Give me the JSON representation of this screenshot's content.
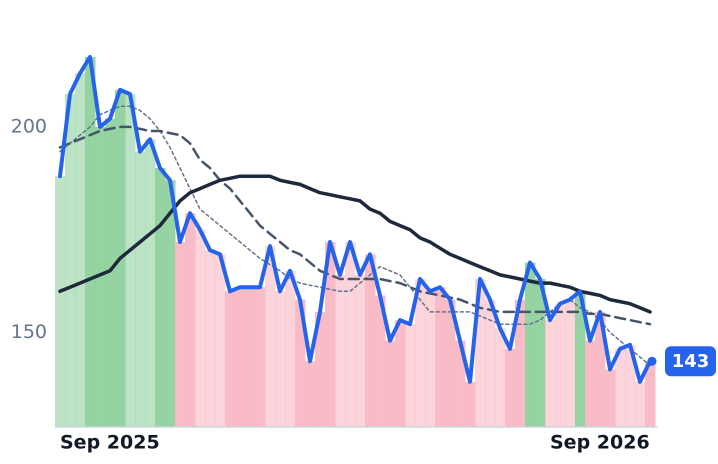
{
  "chart_data": {
    "type": "line",
    "categories": [
      "Sep 2025",
      null,
      null,
      null,
      null,
      null,
      null,
      null,
      null,
      null,
      null,
      null,
      null,
      null,
      null,
      null,
      null,
      null,
      null,
      null,
      null,
      null,
      null,
      null,
      null,
      null,
      null,
      null,
      null,
      null,
      null,
      null,
      null,
      null,
      null,
      null,
      null,
      null,
      null,
      null,
      null,
      null,
      null,
      null,
      null,
      null,
      null,
      null,
      null,
      "Sep 2026",
      null,
      null,
      null,
      null,
      null,
      null,
      null,
      null,
      null,
      null
    ],
    "series": [
      {
        "color": "#2563eb",
        "style": "solid",
        "width": 4,
        "values": [
          188,
          208,
          213,
          217,
          200,
          202,
          209,
          208,
          194,
          197,
          190,
          187,
          172,
          179,
          175,
          170,
          169,
          160,
          161,
          161,
          161,
          171,
          160,
          165,
          158,
          143,
          155,
          172,
          164,
          172,
          164,
          169,
          159,
          148,
          153,
          152,
          163,
          160,
          161,
          158,
          148,
          138,
          163,
          158,
          151,
          146,
          158,
          167,
          163,
          153,
          157,
          158,
          160,
          148,
          155,
          141,
          146,
          147,
          138,
          143
        ]
      },
      {
        "color": "#1e293b",
        "style": "solid",
        "width": 3.5,
        "values": [
          160,
          161,
          162,
          163,
          164,
          165,
          168,
          170,
          172,
          174,
          176,
          179,
          182,
          184,
          185,
          186,
          187,
          187.5,
          188,
          188,
          188,
          188,
          187,
          186.5,
          186,
          185,
          184,
          183.5,
          183,
          182.5,
          182,
          180,
          179,
          177,
          176,
          175,
          173,
          172,
          170.5,
          169,
          168,
          167,
          166,
          165,
          164,
          163.5,
          163,
          162.5,
          162,
          162,
          161.5,
          161,
          160,
          159.5,
          159,
          158,
          157.5,
          157,
          156,
          155
        ]
      },
      {
        "color": "#475569",
        "style": "dashed",
        "width": 2.5,
        "values": [
          195,
          196,
          197,
          198,
          199,
          199.5,
          200,
          200,
          199.5,
          199,
          199,
          198.5,
          198,
          196,
          192,
          190,
          187,
          185,
          182,
          179,
          176,
          174,
          172,
          170,
          169,
          167,
          165,
          164,
          163,
          163,
          163,
          163,
          163,
          162.5,
          162,
          161,
          160,
          159.5,
          159,
          158.5,
          158,
          157,
          156,
          155.5,
          155,
          155,
          155,
          155,
          155,
          155,
          155,
          155,
          155,
          154.5,
          154.5,
          154,
          153.5,
          153,
          152.5,
          152
        ]
      },
      {
        "color": "#64748b",
        "style": "dotted",
        "width": 1.5,
        "values": [
          194,
          196,
          198,
          200,
          203,
          204,
          205,
          205,
          204,
          202,
          199,
          195,
          190,
          185,
          180,
          178,
          176,
          174,
          172,
          170,
          168,
          166.5,
          165,
          163,
          162,
          161.5,
          161,
          160.5,
          160,
          160,
          162,
          164,
          166,
          165,
          164,
          161,
          158,
          155,
          155,
          155,
          155,
          155,
          154,
          153,
          152,
          152,
          152,
          152,
          153,
          155,
          157,
          158,
          156,
          155,
          153,
          150,
          148,
          146,
          144,
          142
        ]
      }
    ],
    "bar_colors": {
      "up": "#8fd19e",
      "down": "#f9b8c4"
    },
    "ylim": [
      127,
      226
    ],
    "yticks": [
      150,
      200
    ]
  }
}
